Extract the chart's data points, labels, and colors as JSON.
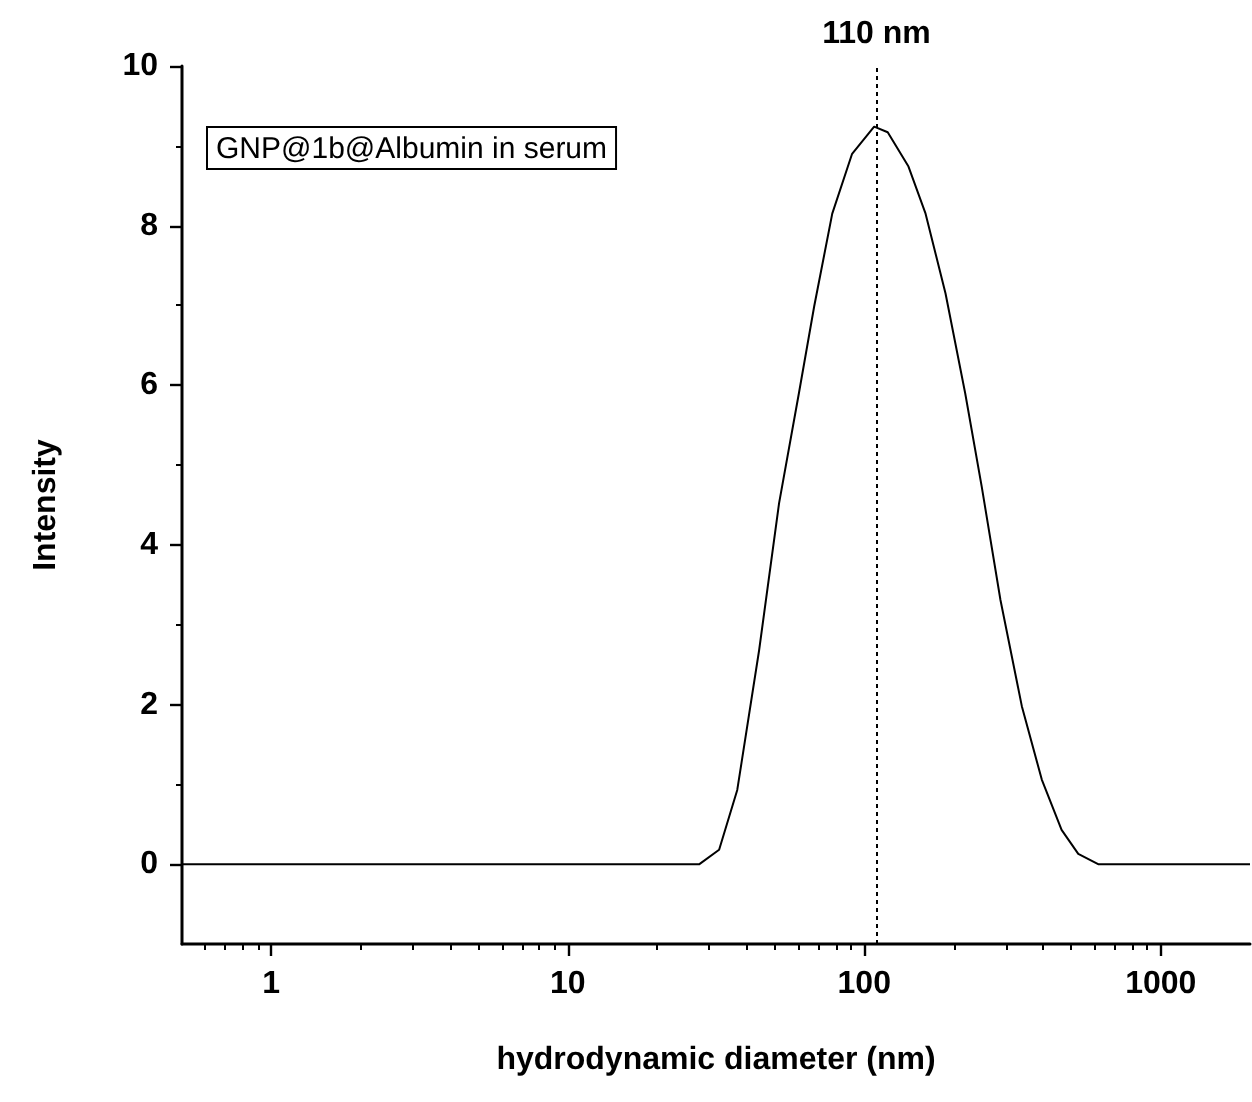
{
  "chart_data": {
    "type": "line",
    "xlabel": "hydrodynamic diameter (nm)",
    "ylabel": "Intensity",
    "log": "x",
    "xlim": [
      0.5,
      2000
    ],
    "xticks": [
      1,
      10,
      100,
      1000
    ],
    "ylim": [
      -1,
      10
    ],
    "yticks": [
      0,
      2,
      4,
      6,
      8,
      10
    ],
    "x": [
      0.5,
      27.8,
      32.4,
      37.3,
      44.2,
      51.6,
      60.2,
      67.8,
      78,
      91,
      108,
      120,
      141,
      161,
      188,
      219,
      249,
      288,
      340,
      397,
      463,
      527,
      615,
      2000
    ],
    "series": [
      {
        "color": "#000000",
        "values": [
          0,
          0,
          0.18,
          0.93,
          2.68,
          4.52,
          5.9,
          6.99,
          8.15,
          8.9,
          9.24,
          9.17,
          8.74,
          8.15,
          7.15,
          5.9,
          4.73,
          3.31,
          1.98,
          1.06,
          0.43,
          0.13,
          0,
          0
        ]
      }
    ],
    "ref_lines": [
      {
        "axis": "x",
        "value": 110,
        "label": "110 nm",
        "color": "#000000",
        "line_style": "dotted"
      }
    ],
    "annotations": [
      "GNP@1b@Albumin in serum"
    ],
    "marker": "none",
    "line_style": "solid"
  }
}
